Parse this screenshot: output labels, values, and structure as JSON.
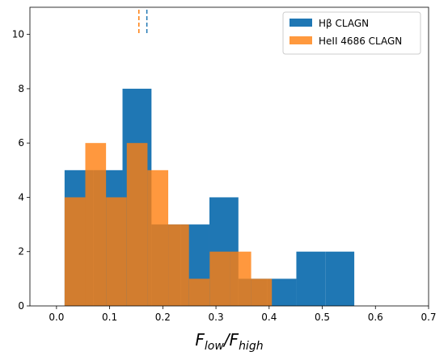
{
  "chart_data": {
    "type": "histogram",
    "xlabel": [
      "F",
      "low",
      "/F",
      "high"
    ],
    "xlim": [
      -0.05,
      0.7
    ],
    "xticks": [
      {
        "value": 0,
        "label": "0.0"
      },
      0.1,
      0.2,
      0.3,
      0.4,
      0.5,
      0.6,
      0.7
    ],
    "ylim": [
      0,
      11
    ],
    "yticks": [
      0,
      2,
      4,
      6,
      8,
      10
    ],
    "legend": "upper right",
    "series": [
      {
        "name": "Hβ CLAGN",
        "color": "#1f77b4",
        "opacity": 1,
        "bins": [
          0.0152,
          0.0697,
          0.1242,
          0.1787,
          0.2332,
          0.2877,
          0.3422,
          0.3967,
          0.4512,
          0.5057,
          0.5602
        ],
        "values": [
          5,
          5,
          8,
          3,
          3,
          4,
          1,
          1,
          2,
          2
        ],
        "marker": 0.17
      },
      {
        "name": "HeII 4686 CLAGN",
        "color": "#ff7f0e",
        "opacity": 0.8,
        "bins": [
          0.0152,
          0.0542,
          0.0932,
          0.1322,
          0.1712,
          0.2102,
          0.2492,
          0.2882,
          0.3272,
          0.3662,
          0.4052
        ],
        "values": [
          4,
          6,
          4,
          6,
          5,
          3,
          1,
          2,
          2,
          1
        ],
        "marker": 0.155
      }
    ]
  }
}
